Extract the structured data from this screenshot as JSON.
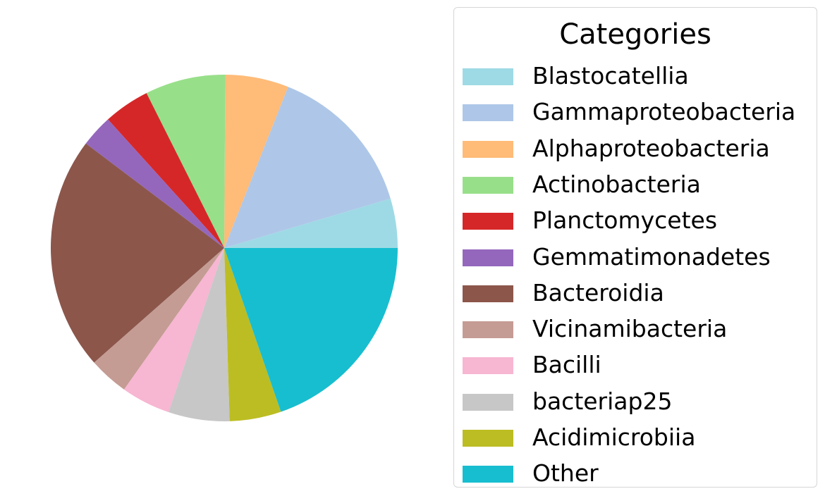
{
  "chart_data": {
    "type": "pie",
    "categories": [
      "Blastocatellia",
      "Gammaproteobacteria",
      "Alphaproteobacteria",
      "Actinobacteria",
      "Planctomycetes",
      "Gemmatimonadetes",
      "Bacteroidia",
      "Vicinamibacteria",
      "Bacilli",
      "bacteriap25",
      "Acidimicrobiia",
      "Other"
    ],
    "values": [
      4.6,
      14.4,
      5.9,
      7.5,
      4.3,
      3.0,
      21.8,
      3.7,
      4.6,
      5.7,
      4.8,
      19.7
    ],
    "colors": [
      "#9edae5",
      "#aec7e8",
      "#ffbb78",
      "#98df8a",
      "#d62728",
      "#9467bd",
      "#8c564b",
      "#c49c94",
      "#f7b6d2",
      "#c7c7c7",
      "#bcbd22",
      "#17becf"
    ],
    "start_angle_deg": 0,
    "direction": "counterclockwise",
    "legend": {
      "title": "Categories",
      "placement": "right"
    }
  }
}
